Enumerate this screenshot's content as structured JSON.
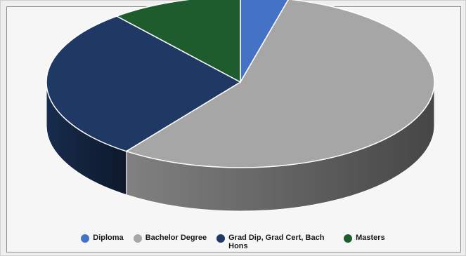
{
  "chart_data": {
    "type": "pie",
    "title": "",
    "style": "3d",
    "legend_position": "bottom",
    "slices": [
      {
        "label": "Diploma",
        "value": 4,
        "color": "#4472c4"
      },
      {
        "label": "Bachelor Degree",
        "value": 56,
        "color": "#a6a6a6"
      },
      {
        "label": "Grad Dip, Grad Cert, Bach Hons",
        "value": 29,
        "color": "#1f3864"
      },
      {
        "label": "Masters",
        "value": 11,
        "color": "#1e5c2e"
      }
    ]
  }
}
